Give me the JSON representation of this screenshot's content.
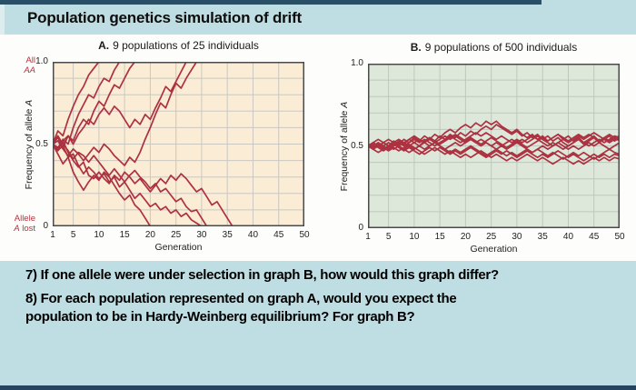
{
  "header": {
    "title": "Population genetics simulation of drift"
  },
  "colors": {
    "band_blue": "#bfdee3",
    "navy_strip": "#2a5068",
    "panel_white": "#fdfdfb",
    "line_red": "#ad3140",
    "red_label": "#b6333f"
  },
  "questions": {
    "q7": "7) If one allele were under selection in graph B, how would this graph differ?",
    "q8_lines": [
      "8) For each population represented on graph A, would you expect the",
      "population to be in Hardy-Weinberg equilibrium? For graph B?"
    ]
  },
  "chart_data": [
    {
      "type": "line",
      "panel_letter": "A.",
      "panel_title": "9 populations of 25 individuals",
      "xlabel": "Generation",
      "ylabel_pre": "Frequency of allele ",
      "ylabel_italic": "A",
      "xlim": [
        1,
        50
      ],
      "ylim": [
        0,
        1
      ],
      "grid": true,
      "legend": "none",
      "x_ticks": [
        1,
        5,
        10,
        15,
        20,
        25,
        30,
        35,
        40,
        45,
        50
      ],
      "y_ticks": [
        {
          "label": "1.0",
          "value": 1.0
        },
        {
          "label": "0.5",
          "value": 0.5
        },
        {
          "label": "0",
          "value": 0.0
        }
      ],
      "bg": "#faecd5",
      "grid_color": "#cbc8c1",
      "frame": "#4a4a4a",
      "line_color": "#ad3140",
      "annotations": {
        "fixed_line1": "All",
        "fixed_line2_italic": "AA",
        "lost_line1": "Allele",
        "lost_line2_italic": "A",
        "lost_line2_rest": " lost"
      },
      "series": [
        [
          0.5,
          0.58,
          0.55,
          0.65,
          0.73,
          0.8,
          0.85,
          0.92,
          0.96,
          1.0
        ],
        [
          0.5,
          0.46,
          0.53,
          0.5,
          0.6,
          0.68,
          0.74,
          0.8,
          0.78,
          0.85,
          0.9,
          0.88,
          0.95,
          1.0
        ],
        [
          0.5,
          0.54,
          0.48,
          0.55,
          0.52,
          0.6,
          0.65,
          0.62,
          0.7,
          0.76,
          0.73,
          0.8,
          0.86,
          0.84,
          0.9,
          0.96,
          1.0
        ],
        [
          0.5,
          0.47,
          0.52,
          0.55,
          0.5,
          0.56,
          0.6,
          0.65,
          0.62,
          0.68,
          0.72,
          0.68,
          0.73,
          0.7,
          0.65,
          0.6,
          0.65,
          0.62,
          0.68,
          0.65,
          0.72,
          0.78,
          0.85,
          0.82,
          0.88,
          0.94,
          1.0
        ],
        [
          0.5,
          0.52,
          0.47,
          0.43,
          0.47,
          0.44,
          0.4,
          0.44,
          0.48,
          0.45,
          0.5,
          0.47,
          0.43,
          0.4,
          0.37,
          0.42,
          0.39,
          0.45,
          0.53,
          0.6,
          0.68,
          0.75,
          0.72,
          0.8,
          0.87,
          0.84,
          0.9,
          0.95,
          1.0
        ],
        [
          0.5,
          0.44,
          0.38,
          0.42,
          0.33,
          0.27,
          0.22,
          0.27,
          0.31,
          0.28,
          0.33,
          0.3,
          0.25,
          0.2,
          0.16,
          0.19,
          0.13,
          0.1,
          0.05,
          0
        ],
        [
          0.5,
          0.46,
          0.49,
          0.42,
          0.44,
          0.37,
          0.32,
          0.36,
          0.33,
          0.29,
          0.32,
          0.27,
          0.3,
          0.24,
          0.27,
          0.22,
          0.17,
          0.2,
          0.16,
          0.12,
          0.14,
          0.1,
          0.12,
          0.08,
          0.1,
          0.06,
          0.08,
          0.04,
          0.02,
          0
        ],
        [
          0.5,
          0.55,
          0.5,
          0.46,
          0.41,
          0.45,
          0.43,
          0.39,
          0.43,
          0.39,
          0.35,
          0.31,
          0.35,
          0.31,
          0.27,
          0.31,
          0.34,
          0.3,
          0.27,
          0.23,
          0.26,
          0.21,
          0.23,
          0.19,
          0.15,
          0.17,
          0.12,
          0.09,
          0.1,
          0.05,
          0
        ],
        [
          0.5,
          0.48,
          0.52,
          0.45,
          0.4,
          0.36,
          0.39,
          0.31,
          0.29,
          0.33,
          0.29,
          0.26,
          0.31,
          0.28,
          0.33,
          0.3,
          0.26,
          0.29,
          0.25,
          0.21,
          0.25,
          0.29,
          0.26,
          0.31,
          0.28,
          0.32,
          0.29,
          0.25,
          0.21,
          0.23,
          0.18,
          0.13,
          0.15,
          0.1,
          0.05,
          0
        ]
      ]
    },
    {
      "type": "line",
      "panel_letter": "B.",
      "panel_title": "9 populations of 500 individuals",
      "xlabel": "Generation",
      "ylabel_pre": "Frequency of allele ",
      "ylabel_italic": "A",
      "xlim": [
        1,
        50
      ],
      "ylim": [
        0,
        1
      ],
      "grid": true,
      "legend": "none",
      "x_ticks": [
        1,
        5,
        10,
        15,
        20,
        25,
        30,
        35,
        40,
        45,
        50
      ],
      "y_ticks": [
        {
          "label": "1.0",
          "value": 1.0
        },
        {
          "label": "0.5",
          "value": 0.5
        },
        {
          "label": "0",
          "value": 0.0
        }
      ],
      "bg": "#dde8da",
      "grid_color": "#bdc8bc",
      "frame": "#4a4a4a",
      "line_color": "#ad3140",
      "series": [
        [
          0.5,
          0.51,
          0.49,
          0.52,
          0.5,
          0.53,
          0.51,
          0.54,
          0.52,
          0.55,
          0.53,
          0.56,
          0.54,
          0.57,
          0.55,
          0.58,
          0.6,
          0.58,
          0.61,
          0.63,
          0.61,
          0.64,
          0.62,
          0.65,
          0.63,
          0.65,
          0.62,
          0.6,
          0.58,
          0.6,
          0.57,
          0.55,
          0.57,
          0.54,
          0.56,
          0.53,
          0.55,
          0.57,
          0.54,
          0.56,
          0.53,
          0.55,
          0.52,
          0.54,
          0.56,
          0.53,
          0.55,
          0.57,
          0.55,
          0.56
        ],
        [
          0.5,
          0.49,
          0.51,
          0.5,
          0.52,
          0.5,
          0.53,
          0.51,
          0.54,
          0.52,
          0.5,
          0.53,
          0.55,
          0.53,
          0.56,
          0.54,
          0.57,
          0.55,
          0.58,
          0.56,
          0.59,
          0.57,
          0.6,
          0.62,
          0.6,
          0.63,
          0.61,
          0.59,
          0.57,
          0.59,
          0.56,
          0.58,
          0.55,
          0.57,
          0.54,
          0.56,
          0.53,
          0.55,
          0.52,
          0.5,
          0.52,
          0.54,
          0.51,
          0.53,
          0.55,
          0.52,
          0.54,
          0.56,
          0.53,
          0.55
        ],
        [
          0.5,
          0.52,
          0.5,
          0.48,
          0.5,
          0.52,
          0.54,
          0.52,
          0.5,
          0.52,
          0.54,
          0.52,
          0.55,
          0.53,
          0.51,
          0.53,
          0.55,
          0.57,
          0.55,
          0.53,
          0.55,
          0.53,
          0.51,
          0.53,
          0.55,
          0.53,
          0.51,
          0.49,
          0.51,
          0.53,
          0.51,
          0.49,
          0.51,
          0.53,
          0.55,
          0.53,
          0.55,
          0.57,
          0.55,
          0.53,
          0.55,
          0.57,
          0.55,
          0.57,
          0.55,
          0.53,
          0.55,
          0.53,
          0.55,
          0.53
        ],
        [
          0.5,
          0.48,
          0.5,
          0.52,
          0.5,
          0.48,
          0.5,
          0.48,
          0.46,
          0.48,
          0.5,
          0.48,
          0.5,
          0.52,
          0.5,
          0.48,
          0.5,
          0.52,
          0.5,
          0.52,
          0.54,
          0.52,
          0.5,
          0.52,
          0.5,
          0.48,
          0.5,
          0.48,
          0.5,
          0.52,
          0.5,
          0.48,
          0.46,
          0.48,
          0.5,
          0.48,
          0.5,
          0.52,
          0.5,
          0.48,
          0.5,
          0.48,
          0.5,
          0.52,
          0.5,
          0.52,
          0.5,
          0.48,
          0.5,
          0.52
        ],
        [
          0.5,
          0.51,
          0.49,
          0.47,
          0.49,
          0.51,
          0.49,
          0.47,
          0.49,
          0.47,
          0.45,
          0.47,
          0.49,
          0.47,
          0.49,
          0.47,
          0.45,
          0.47,
          0.45,
          0.47,
          0.49,
          0.47,
          0.45,
          0.43,
          0.45,
          0.47,
          0.45,
          0.47,
          0.45,
          0.43,
          0.45,
          0.47,
          0.45,
          0.43,
          0.45,
          0.43,
          0.45,
          0.47,
          0.45,
          0.43,
          0.45,
          0.43,
          0.41,
          0.43,
          0.45,
          0.43,
          0.45,
          0.43,
          0.45,
          0.44
        ],
        [
          0.5,
          0.49,
          0.51,
          0.49,
          0.47,
          0.49,
          0.47,
          0.49,
          0.51,
          0.49,
          0.47,
          0.45,
          0.47,
          0.49,
          0.47,
          0.45,
          0.47,
          0.45,
          0.43,
          0.45,
          0.43,
          0.45,
          0.47,
          0.45,
          0.43,
          0.45,
          0.43,
          0.41,
          0.43,
          0.41,
          0.43,
          0.45,
          0.43,
          0.41,
          0.43,
          0.41,
          0.39,
          0.41,
          0.43,
          0.41,
          0.39,
          0.41,
          0.39,
          0.41,
          0.43,
          0.41,
          0.43,
          0.41,
          0.43,
          0.42
        ],
        [
          0.5,
          0.52,
          0.54,
          0.52,
          0.54,
          0.52,
          0.5,
          0.52,
          0.54,
          0.56,
          0.54,
          0.52,
          0.54,
          0.52,
          0.54,
          0.56,
          0.54,
          0.56,
          0.54,
          0.52,
          0.54,
          0.52,
          0.54,
          0.52,
          0.5,
          0.52,
          0.5,
          0.52,
          0.54,
          0.52,
          0.54,
          0.52,
          0.54,
          0.56,
          0.54,
          0.52,
          0.5,
          0.52,
          0.54,
          0.52,
          0.54,
          0.56,
          0.54,
          0.56,
          0.58,
          0.56,
          0.54,
          0.52,
          0.54,
          0.55
        ],
        [
          0.5,
          0.48,
          0.46,
          0.48,
          0.5,
          0.52,
          0.5,
          0.48,
          0.5,
          0.48,
          0.5,
          0.52,
          0.5,
          0.52,
          0.5,
          0.48,
          0.46,
          0.48,
          0.46,
          0.48,
          0.5,
          0.48,
          0.46,
          0.44,
          0.46,
          0.48,
          0.46,
          0.44,
          0.46,
          0.44,
          0.46,
          0.48,
          0.46,
          0.48,
          0.46,
          0.44,
          0.46,
          0.44,
          0.42,
          0.44,
          0.46,
          0.44,
          0.46,
          0.44,
          0.42,
          0.44,
          0.46,
          0.48,
          0.46,
          0.45
        ],
        [
          0.5,
          0.5,
          0.52,
          0.5,
          0.48,
          0.5,
          0.52,
          0.5,
          0.52,
          0.54,
          0.52,
          0.54,
          0.52,
          0.5,
          0.52,
          0.54,
          0.56,
          0.54,
          0.52,
          0.54,
          0.56,
          0.58,
          0.56,
          0.58,
          0.56,
          0.54,
          0.56,
          0.54,
          0.52,
          0.54,
          0.52,
          0.54,
          0.56,
          0.54,
          0.52,
          0.5,
          0.52,
          0.5,
          0.48,
          0.5,
          0.52,
          0.54,
          0.52,
          0.5,
          0.52,
          0.54,
          0.52,
          0.54,
          0.56,
          0.55
        ]
      ]
    }
  ]
}
